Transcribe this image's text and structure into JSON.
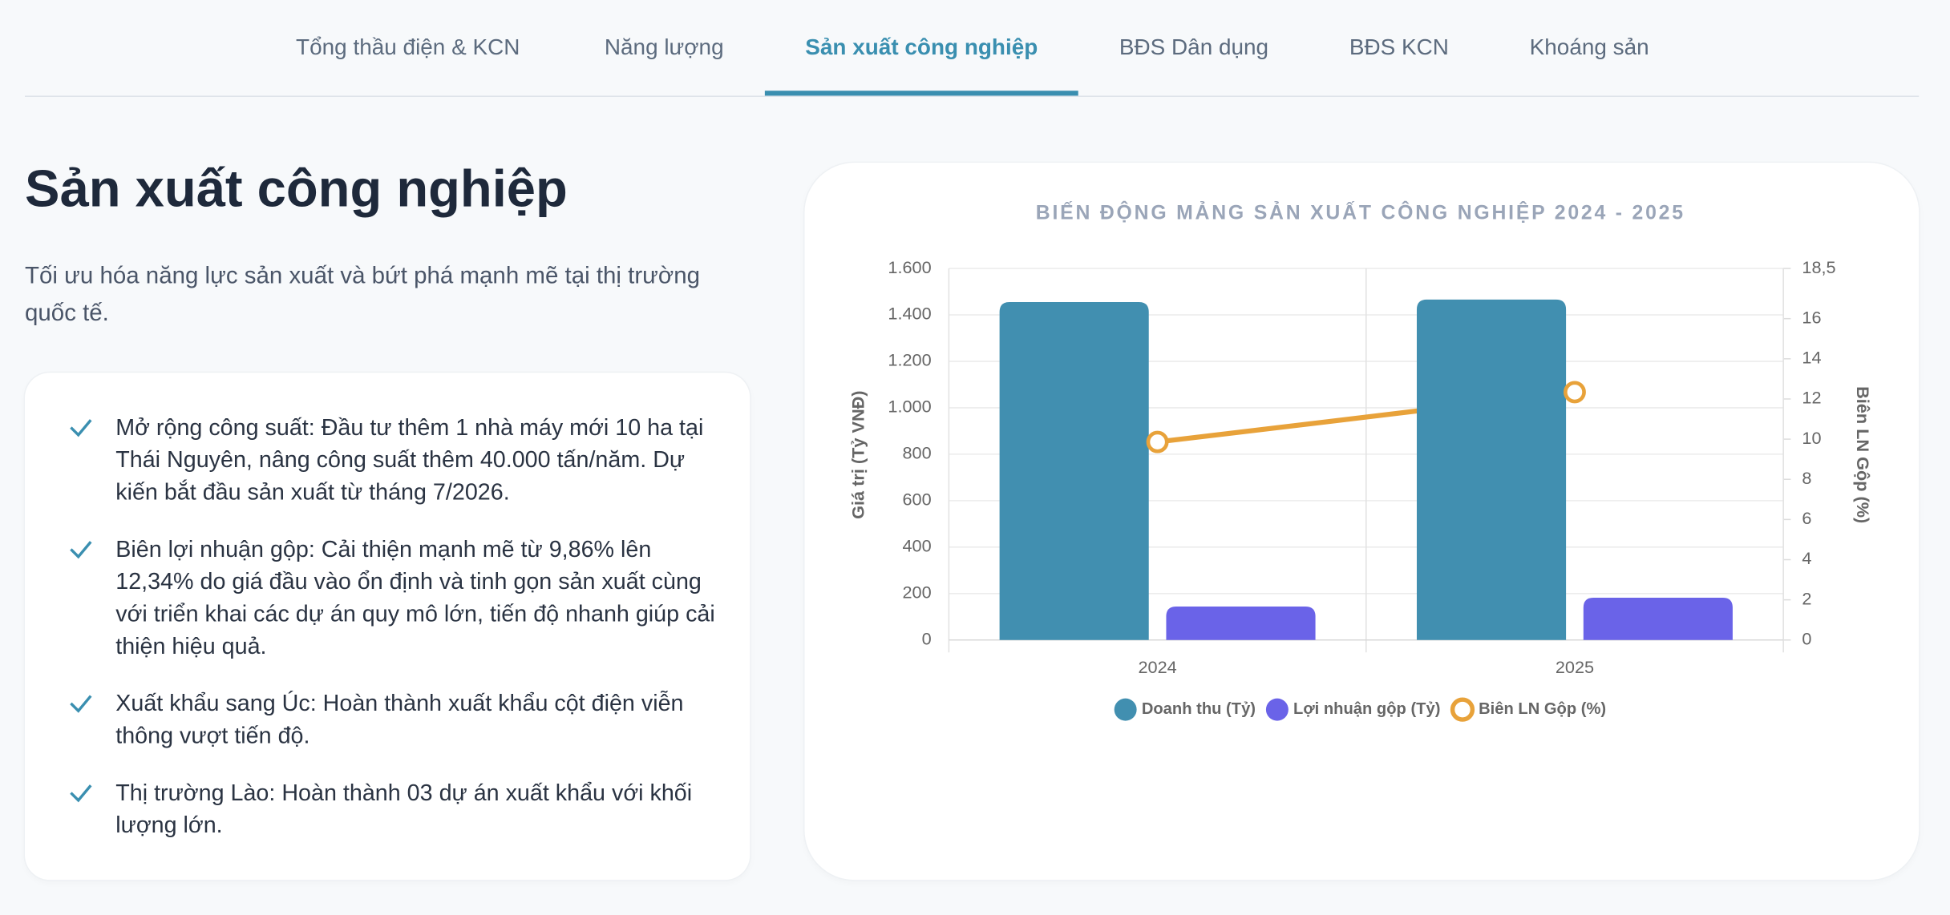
{
  "tabs": [
    "Tổng thầu điện & KCN",
    "Năng lượng",
    "Sản xuất công nghiệp",
    "BĐS Dân dụng",
    "BĐS KCN",
    "Khoáng sản"
  ],
  "heading": "Sản xuất công nghiệp",
  "description": "Tối ưu hóa năng lực sản xuất và bứt phá mạnh mẽ tại thị trường quốc tế.",
  "bullets": [
    "Mở rộng công suất: Đầu tư thêm 1 nhà máy mới 10 ha tại Thái Nguyên, nâng công suất thêm 40.000 tấn/năm. Dự kiến bắt đầu sản xuất từ tháng 7/2026.",
    "Biên lợi nhuận gộp: Cải thiện mạnh mẽ từ 9,86% lên 12,34% do giá đầu vào ổn định và tinh gọn sản xuất cùng với triển khai các dự án quy mô lớn, tiến độ nhanh giúp cải thiện hiệu quả.",
    "Xuất khẩu sang Úc: Hoàn thành xuất khẩu cột điện viễn thông vượt tiến độ.",
    "Thị trường Lào: Hoàn thành 03 dự án xuất khẩu với khối lượng lớn."
  ],
  "chart_data": {
    "type": "bar",
    "title": "BIẾN ĐỘNG MẢNG SẢN XUẤT CÔNG NGHIỆP 2024 - 2025",
    "y_label": "Giá trị (Tỷ VNĐ)",
    "y2_label": "Biên LN Gộp (%)",
    "categories": [
      "2024",
      "2025"
    ],
    "series": [
      {
        "name": "Doanh thu (Tỷ)",
        "color": "#418fb0",
        "values": [
          1455,
          1466
        ]
      },
      {
        "name": "Lợi nhuận gộp (Tỷ)",
        "color": "#6a63e8",
        "values": [
          144,
          182
        ]
      },
      {
        "name": "Biên LN Gộp (%)",
        "color": "#e8a23a",
        "type": "line",
        "axis": "y2",
        "values": [
          9.86,
          12.34
        ]
      }
    ],
    "ylim": [
      0,
      1600
    ],
    "yticks": [
      0,
      200,
      400,
      600,
      800,
      {
        "value": 1000,
        "label": "1.000"
      },
      {
        "value": 1200,
        "label": "1.200"
      },
      {
        "value": 1400,
        "label": "1.400"
      },
      {
        "value": 1600,
        "label": "1.600"
      }
    ],
    "y2lim": [
      0,
      18.5
    ],
    "y2ticks": [
      0,
      2,
      4,
      6,
      8,
      10,
      12,
      14,
      16,
      {
        "value": 18.5,
        "label": "18,5"
      }
    ],
    "grid": true
  }
}
